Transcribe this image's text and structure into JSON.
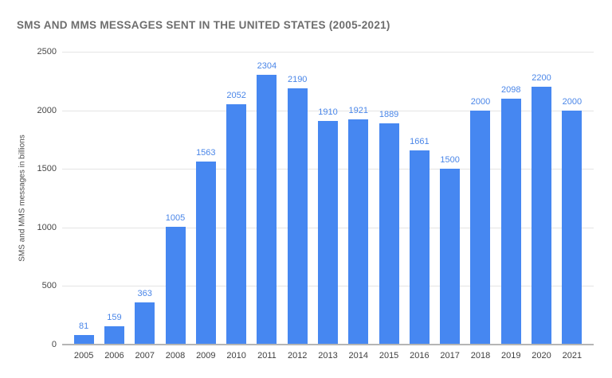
{
  "chart_data": {
    "type": "bar",
    "title": "SMS AND MMS MESSAGES SENT IN THE UNITED STATES (2005-2021)",
    "categories": [
      "2005",
      "2006",
      "2007",
      "2008",
      "2009",
      "2010",
      "2011",
      "2012",
      "2013",
      "2014",
      "2015",
      "2016",
      "2017",
      "2018",
      "2019",
      "2020",
      "2021"
    ],
    "values": [
      81,
      159,
      363,
      1005,
      1563,
      2052,
      2304,
      2190,
      1910,
      1921,
      1889,
      1661,
      1500,
      2000,
      2098,
      2200,
      2000
    ],
    "xlabel": "",
    "ylabel": "SMS and MMS messages in billions",
    "ylim": [
      0,
      2500
    ],
    "yticks": [
      0,
      500,
      1000,
      1500,
      2000,
      2500
    ],
    "grid": true,
    "legend": false,
    "data_labels": true,
    "bar_color": "#4687f1",
    "value_label_color": "#4a86e8",
    "title_color": "#6d6d6d",
    "gridline_color": "#e4e4e4",
    "axis_line_color": "#b5b5b5"
  }
}
